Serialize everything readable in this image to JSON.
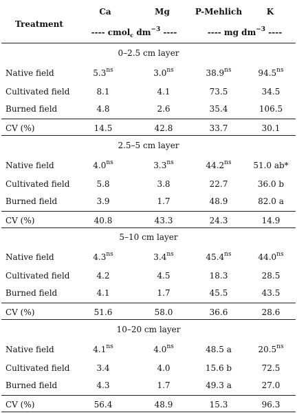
{
  "header": {
    "treatment": "Treatment",
    "columns": [
      "Ca",
      "Mg",
      "P-Mehlich",
      "K"
    ],
    "units": [
      [
        "---- cmol",
        "c",
        " dm",
        "−3",
        " ----"
      ],
      [
        "---- mg dm",
        "−3",
        " ----"
      ]
    ]
  },
  "sections": [
    {
      "layer": "0–2.5 cm layer",
      "rows": [
        {
          "label": "Native field",
          "cells": [
            {
              "text": "5.3",
              "sup": "ns"
            },
            {
              "text": "3.0",
              "sup": "ns"
            },
            {
              "text": "38.9",
              "sup": "ns"
            },
            {
              "text": "94.5",
              "sup": "ns"
            }
          ]
        },
        {
          "label": "Cultivated field",
          "cells": [
            "8.1",
            "4.1",
            "73.5",
            "34.5"
          ]
        },
        {
          "label": "Burned field",
          "cells": [
            "4.8",
            "2.6",
            "35.4",
            "106.5"
          ]
        },
        {
          "label": "CV (%)",
          "cells": [
            "14.5",
            "42.8",
            "33.7",
            "30.1"
          ]
        }
      ]
    },
    {
      "layer": "2.5–5 cm layer",
      "rows": [
        {
          "label": "Native field",
          "cells": [
            {
              "text": "4.0",
              "sup": "ns"
            },
            {
              "text": "3.3",
              "sup": "ns"
            },
            {
              "text": "44.2",
              "sup": "ns"
            },
            "51.0 ab*"
          ]
        },
        {
          "label": "Cultivated field",
          "cells": [
            "5.8",
            "3.8",
            "22.7",
            "36.0 b"
          ]
        },
        {
          "label": "Burned field",
          "cells": [
            "3.9",
            "1.7",
            "48.9",
            "82.0 a"
          ]
        },
        {
          "label": "CV (%)",
          "cells": [
            "40.8",
            "43.3",
            "24.3",
            "14.9"
          ]
        }
      ]
    },
    {
      "layer": "5–10 cm layer",
      "rows": [
        {
          "label": "Native field",
          "cells": [
            {
              "text": "4.3",
              "sup": "ns"
            },
            {
              "text": "3.4",
              "sup": "ns"
            },
            {
              "text": "45.4",
              "sup": "ns"
            },
            {
              "text": "44.0",
              "sup": "ns"
            }
          ]
        },
        {
          "label": "Cultivated field",
          "cells": [
            "4.2",
            "4.5",
            "18.3",
            "28.5"
          ]
        },
        {
          "label": "Burned field",
          "cells": [
            "4.1",
            "1.7",
            "45.5",
            "43.5"
          ]
        },
        {
          "label": "CV (%)",
          "cells": [
            "51.6",
            "58.0",
            "36.6",
            "28.6"
          ]
        }
      ]
    },
    {
      "layer": "10–20 cm layer",
      "rows": [
        {
          "label": "Native field",
          "cells": [
            {
              "text": "4.1",
              "sup": "ns"
            },
            {
              "text": "4.0",
              "sup": "ns"
            },
            "48.5 a",
            {
              "text": "20.5",
              "sup": "ns"
            }
          ]
        },
        {
          "label": "Cultivated field",
          "cells": [
            "3.4",
            "4.0",
            "15.6 b",
            "72.5"
          ]
        },
        {
          "label": "Burned field",
          "cells": [
            "4.3",
            "1.7",
            "49.3 a",
            "27.0"
          ]
        },
        {
          "label": "CV (%)",
          "cells": [
            "56.4",
            "48.9",
            "15.3",
            "96.3"
          ]
        }
      ]
    }
  ]
}
